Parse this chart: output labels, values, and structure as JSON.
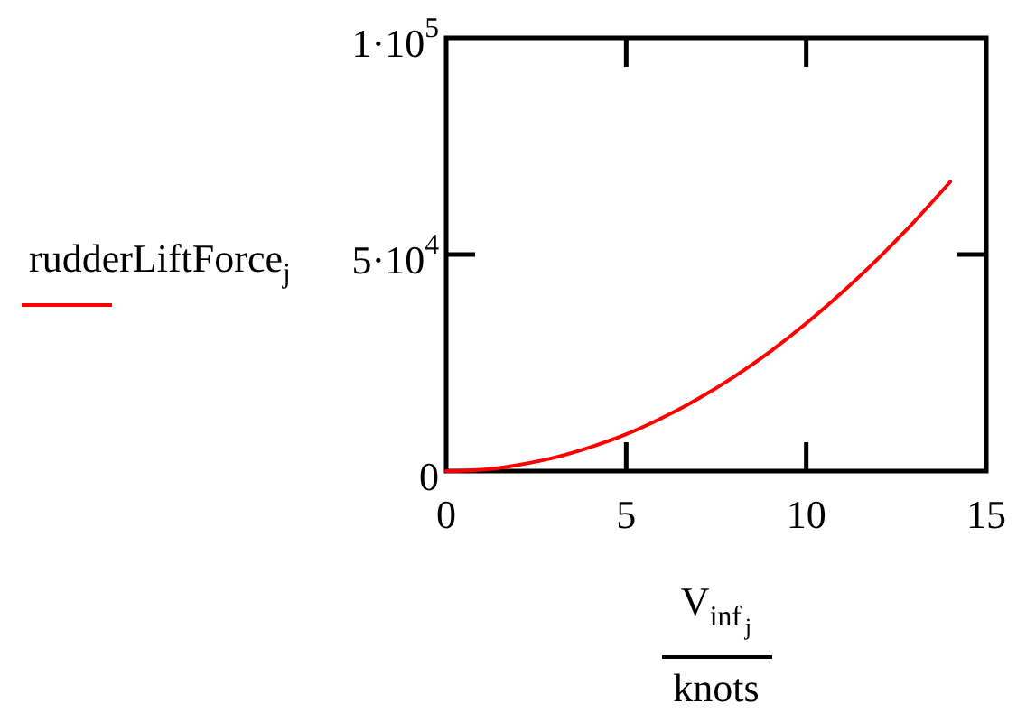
{
  "chart_data": {
    "type": "line",
    "x": [
      0,
      1,
      2,
      3,
      4,
      5,
      6,
      7,
      8,
      9,
      10,
      11,
      12,
      13,
      14
    ],
    "series": [
      {
        "name": "rudderLiftForce$_{j}$",
        "color": "#ff0000",
        "values": [
          0,
          300,
          1400,
          3100,
          5500,
          8500,
          12300,
          16700,
          21800,
          27600,
          34100,
          41300,
          49100,
          57600,
          66800
        ]
      }
    ],
    "xlabel": "V$_{inf}$$_{j}$\nknots",
    "xlim": [
      0,
      15
    ],
    "xticks": [
      0,
      5,
      10,
      15
    ],
    "ylim": [
      0,
      100000
    ],
    "yticks": [
      0,
      {
        "value": 50000,
        "label": "5·10$^{4}$"
      },
      {
        "value": 100000,
        "label": "1·10$^{5}$"
      }
    ],
    "legend": "left"
  }
}
